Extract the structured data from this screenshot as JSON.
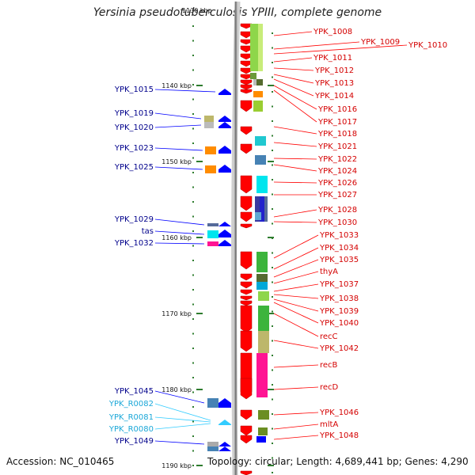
{
  "title": "Yersinia pseudotuberculosis YPIII, complete genome",
  "accession_text": "Accession: NC_010465",
  "topology_text": "Topology: circular; Length: 4,689,441 bp; Genes: 4,290",
  "top_scale_text": "1130 kbp",
  "colors": {
    "forward_gene": "#ff0000",
    "reverse_gene": "#0000ff",
    "rna_gene": "#33ccff",
    "backbone": "#9a9a9a",
    "scale_tick": "#2e7d2e"
  },
  "scale_labels": [
    {
      "text": "1140 kbp",
      "kbp": 1140
    },
    {
      "text": "1150 kbp",
      "kbp": 1150
    },
    {
      "text": "1160 kbp",
      "kbp": 1160
    },
    {
      "text": "1170 kbp",
      "kbp": 1170
    },
    {
      "text": "1180 kbp",
      "kbp": 1180
    },
    {
      "text": "1190 kbp",
      "kbp": 1190
    }
  ],
  "right_labels": [
    "YPK_1008",
    "YPK_1009",
    "YPK_1010",
    "YPK_1011",
    "YPK_1012",
    "YPK_1013",
    "YPK_1014",
    "YPK_1016",
    "YPK_1017",
    "YPK_1018",
    "YPK_1021",
    "YPK_1022",
    "YPK_1024",
    "YPK_1026",
    "YPK_1027",
    "YPK_1028",
    "YPK_1030",
    "YPK_1033",
    "YPK_1034",
    "YPK_1035",
    "thyA",
    "YPK_1037",
    "YPK_1038",
    "YPK_1039",
    "YPK_1040",
    "recC",
    "YPK_1042",
    "recB",
    "recD",
    "YPK_1046",
    "mltA",
    "YPK_1048"
  ],
  "left_labels": [
    {
      "text": "YPK_1015",
      "type": "cds"
    },
    {
      "text": "YPK_1019",
      "type": "cds"
    },
    {
      "text": "YPK_1020",
      "type": "cds"
    },
    {
      "text": "YPK_1023",
      "type": "cds"
    },
    {
      "text": "YPK_1025",
      "type": "cds"
    },
    {
      "text": "YPK_1029",
      "type": "cds"
    },
    {
      "text": "tas",
      "type": "cds"
    },
    {
      "text": "YPK_1032",
      "type": "cds"
    },
    {
      "text": "YPK_1045",
      "type": "cds"
    },
    {
      "text": "YPK_R0082",
      "type": "rna"
    },
    {
      "text": "YPK_R0081",
      "type": "rna"
    },
    {
      "text": "YPK_R0080",
      "type": "rna"
    },
    {
      "text": "YPK_1049",
      "type": "cds"
    }
  ]
}
